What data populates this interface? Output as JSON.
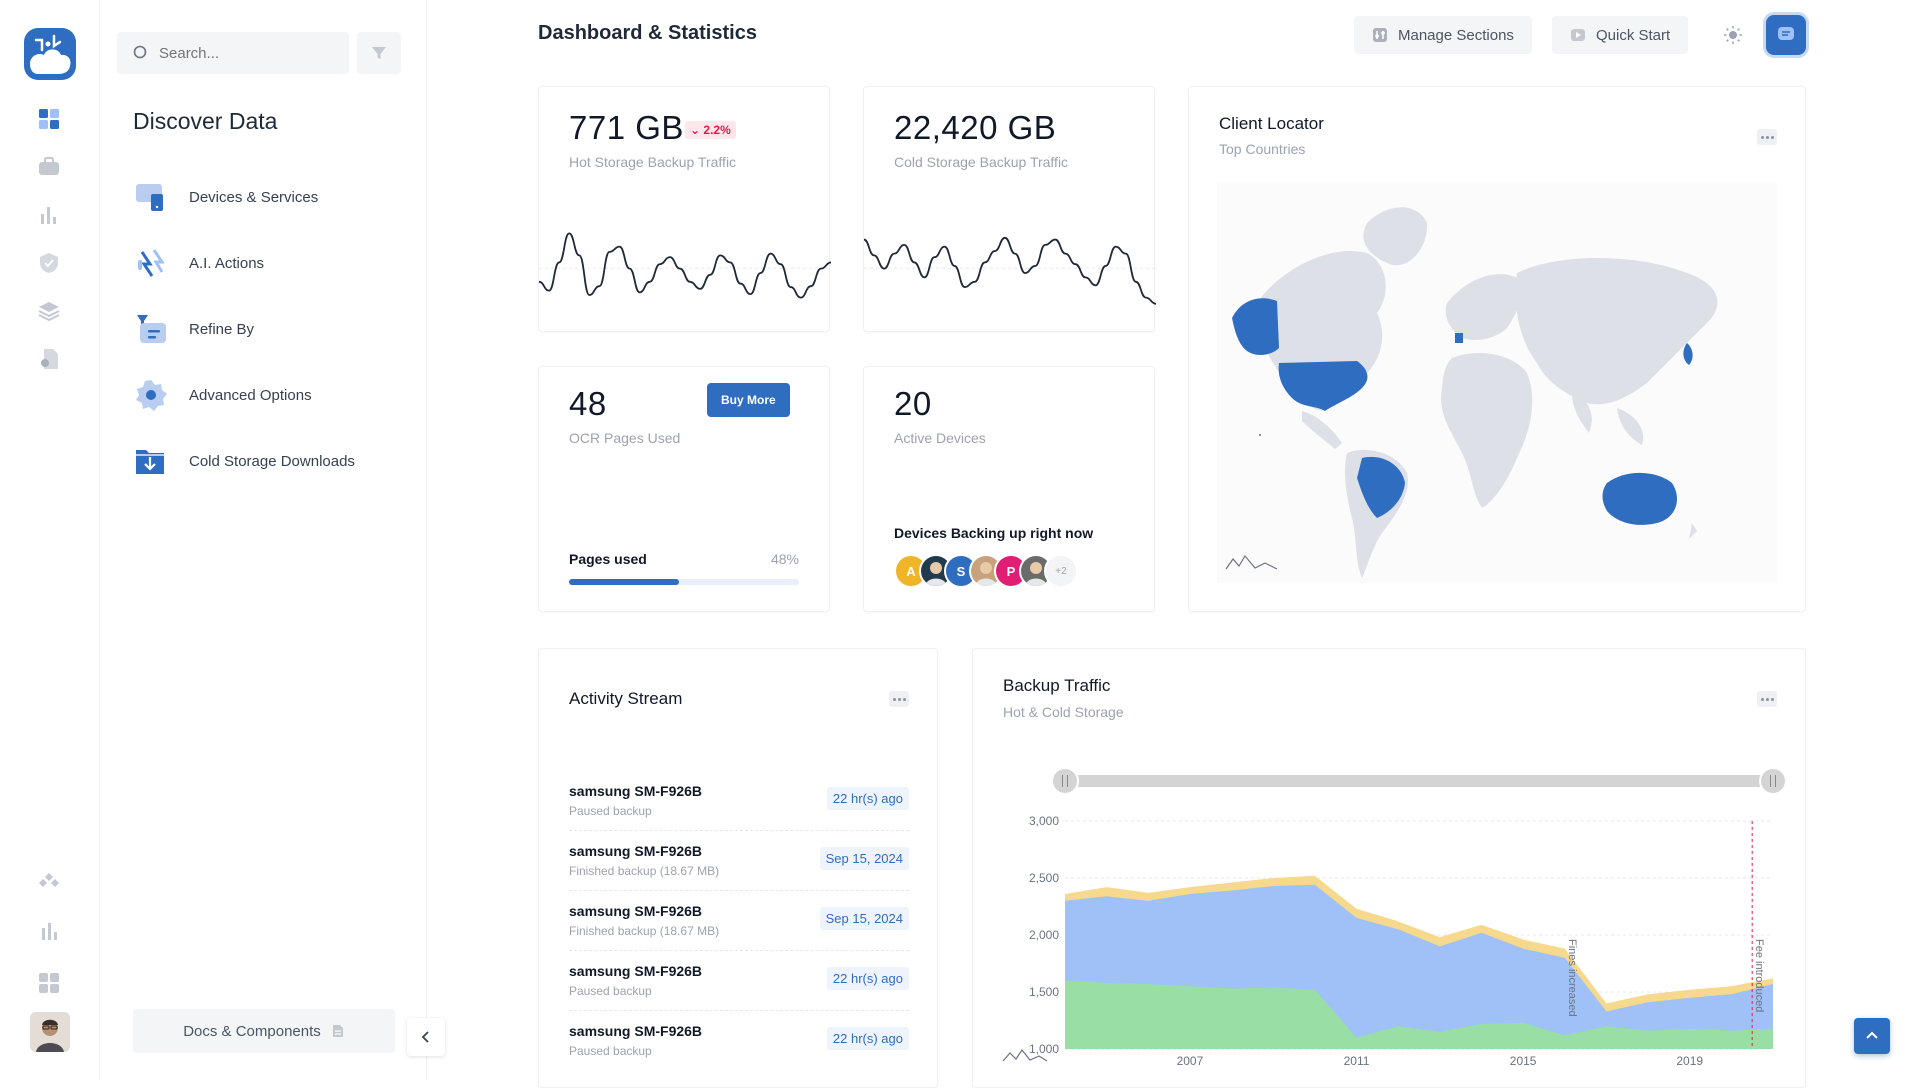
{
  "search": {
    "placeholder": "Search..."
  },
  "panel": {
    "title": "Discover Data",
    "items": [
      {
        "label": "Devices & Services",
        "icon": "devices-icon"
      },
      {
        "label": "A.I. Actions",
        "icon": "ai-actions-icon"
      },
      {
        "label": "Refine By",
        "icon": "refine-icon"
      },
      {
        "label": "Advanced Options",
        "icon": "settings-gear-icon"
      },
      {
        "label": "Cold Storage Downloads",
        "icon": "download-folder-icon"
      }
    ],
    "docs_label": "Docs & Components"
  },
  "header": {
    "title": "Dashboard & Statistics",
    "manage_label": "Manage Sections",
    "quick_label": "Quick Start"
  },
  "stats": {
    "hot": {
      "value": "771 GB",
      "delta": "2.2%",
      "label": "Hot Storage Backup Traffic"
    },
    "cold": {
      "value": "22,420 GB",
      "label": "Cold Storage Backup Traffic"
    },
    "ocr": {
      "value": "48",
      "label": "OCR Pages Used",
      "buy_label": "Buy More",
      "progress_label": "Pages used",
      "progress_text": "48%",
      "progress": 0.48
    },
    "devices": {
      "value": "20",
      "label": "Active Devices",
      "backing_label": "Devices Backing up right now",
      "avatars": [
        {
          "initial": "A",
          "color": "#f0b429"
        },
        {
          "initial": "",
          "color": "#1f3b4d"
        },
        {
          "initial": "S",
          "color": "#2f6dc1"
        },
        {
          "initial": "",
          "color": "#c8a27c"
        },
        {
          "initial": "P",
          "color": "#e11d74"
        },
        {
          "initial": "",
          "color": "#6b6b6b"
        }
      ],
      "more": "+2"
    }
  },
  "locator": {
    "title": "Client Locator",
    "subtitle": "Top Countries"
  },
  "activity": {
    "title": "Activity Stream",
    "rows": [
      {
        "device": "samsung SM-F926B",
        "status": "Paused backup",
        "time": "22 hr(s) ago"
      },
      {
        "device": "samsung SM-F926B",
        "status": "Finished backup (18.67 MB)",
        "time": "Sep 15, 2024"
      },
      {
        "device": "samsung SM-F926B",
        "status": "Finished backup (18.67 MB)",
        "time": "Sep 15, 2024"
      },
      {
        "device": "samsung SM-F926B",
        "status": "Paused backup",
        "time": "22 hr(s) ago"
      },
      {
        "device": "samsung SM-F926B",
        "status": "Paused backup",
        "time": "22 hr(s) ago"
      }
    ]
  },
  "traffic": {
    "title": "Backup Traffic",
    "subtitle": "Hot & Cold Storage",
    "annotations": [
      "Fines increased",
      "Fee introduced"
    ]
  },
  "colors": {
    "accent": "#2f6dc1",
    "danger": "#e11d48",
    "area_green": "#98dea5",
    "area_blue": "#9fc1f8",
    "area_yellow": "#f6d98c"
  },
  "chart_data": [
    {
      "type": "line",
      "title": "",
      "x": [
        0,
        1,
        2,
        3,
        4,
        5,
        6,
        7,
        8,
        9,
        10,
        11,
        12,
        13,
        14,
        15,
        16,
        17,
        18,
        19,
        20,
        21,
        22,
        23,
        24,
        25,
        26,
        27,
        28,
        29
      ],
      "values": [
        40,
        30,
        62,
        95,
        70,
        25,
        35,
        74,
        80,
        55,
        28,
        40,
        60,
        68,
        55,
        40,
        32,
        48,
        70,
        62,
        38,
        26,
        50,
        72,
        60,
        34,
        22,
        35,
        55,
        62
      ]
    },
    {
      "type": "line",
      "title": "",
      "x": [
        0,
        1,
        2,
        3,
        4,
        5,
        6,
        7,
        8,
        9,
        10,
        11,
        12,
        13,
        14,
        15,
        16,
        17,
        18,
        19,
        20,
        21,
        22,
        23,
        24,
        25,
        26,
        27,
        28,
        29
      ],
      "values": [
        88,
        70,
        55,
        72,
        82,
        62,
        45,
        68,
        80,
        58,
        34,
        40,
        62,
        75,
        90,
        72,
        50,
        58,
        82,
        88,
        72,
        60,
        45,
        36,
        58,
        80,
        72,
        40,
        22,
        15
      ]
    },
    {
      "type": "area",
      "title": "Backup Traffic",
      "subtitle": "Hot & Cold Storage",
      "x": [
        2004,
        2005,
        2006,
        2007,
        2008,
        2009,
        2010,
        2011,
        2012,
        2013,
        2014,
        2015,
        2016,
        2017,
        2018,
        2019,
        2020,
        2021
      ],
      "xticks": [
        2007,
        2011,
        2015,
        2019
      ],
      "ylim": [
        1000,
        3000
      ],
      "yticks": [
        1000,
        1500,
        2000,
        2500,
        3000
      ],
      "series": [
        {
          "values": [
            1600,
            1580,
            1570,
            1550,
            1530,
            1540,
            1520,
            1100,
            1200,
            1150,
            1220,
            1230,
            1120,
            1200,
            1160,
            1180,
            1160,
            1180
          ]
        },
        {
          "values": [
            2300,
            2340,
            2300,
            2360,
            2390,
            2430,
            2440,
            2150,
            2050,
            1900,
            2020,
            1880,
            1800,
            1330,
            1410,
            1450,
            1480,
            1570
          ]
        },
        {
          "values": [
            2360,
            2420,
            2370,
            2420,
            2460,
            2500,
            2520,
            2230,
            2120,
            1980,
            2090,
            1960,
            1880,
            1400,
            1480,
            1520,
            1550,
            1620
          ]
        }
      ],
      "annotations": [
        {
          "x": 2016,
          "text": "Fines increased"
        },
        {
          "x": 2020.5,
          "text": "Fee introduced"
        }
      ],
      "range": [
        2004,
        2021
      ]
    }
  ]
}
